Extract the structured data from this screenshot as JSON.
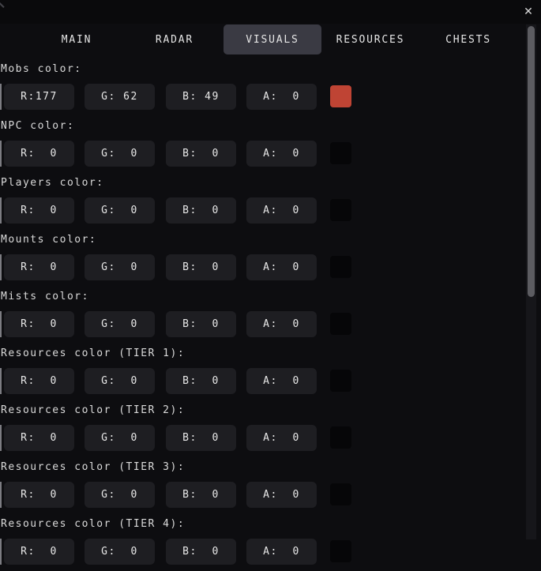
{
  "window": {
    "close_glyph": "✕"
  },
  "tabs": [
    {
      "label": "MAIN",
      "selected": false
    },
    {
      "label": "RADAR",
      "selected": false
    },
    {
      "label": "VISUALS",
      "selected": true
    },
    {
      "label": "RESOURCES",
      "selected": false
    },
    {
      "label": "CHESTS",
      "selected": false
    }
  ],
  "colors": {
    "background": "#0d0d10",
    "field_bg": "#1e1e22",
    "selected_tab_bg": "#3a3a43",
    "scrollbar_thumb": "#5c5c61",
    "mobs_swatch": "#bf4434",
    "empty_swatch": "#060608"
  },
  "sections": [
    {
      "label": "Mobs color:",
      "fields": [
        "R:177",
        "G: 62",
        "B: 49",
        "A:  0"
      ],
      "swatch": "#bf4434"
    },
    {
      "label": "NPC color:",
      "fields": [
        "R:  0",
        "G:  0",
        "B:  0",
        "A:  0"
      ],
      "swatch": "#060608"
    },
    {
      "label": "Players color:",
      "fields": [
        "R:  0",
        "G:  0",
        "B:  0",
        "A:  0"
      ],
      "swatch": "#060608"
    },
    {
      "label": "Mounts color:",
      "fields": [
        "R:  0",
        "G:  0",
        "B:  0",
        "A:  0"
      ],
      "swatch": "#060608"
    },
    {
      "label": "Mists color:",
      "fields": [
        "R:  0",
        "G:  0",
        "B:  0",
        "A:  0"
      ],
      "swatch": "#060608"
    },
    {
      "label": "Resources color (TIER 1):",
      "fields": [
        "R:  0",
        "G:  0",
        "B:  0",
        "A:  0"
      ],
      "swatch": "#060608"
    },
    {
      "label": "Resources color (TIER 2):",
      "fields": [
        "R:  0",
        "G:  0",
        "B:  0",
        "A:  0"
      ],
      "swatch": "#060608"
    },
    {
      "label": "Resources color (TIER 3):",
      "fields": [
        "R:  0",
        "G:  0",
        "B:  0",
        "A:  0"
      ],
      "swatch": "#060608"
    },
    {
      "label": "Resources color (TIER 4):",
      "fields": [
        "R:  0",
        "G:  0",
        "B:  0",
        "A:  0"
      ],
      "swatch": "#060608"
    }
  ]
}
